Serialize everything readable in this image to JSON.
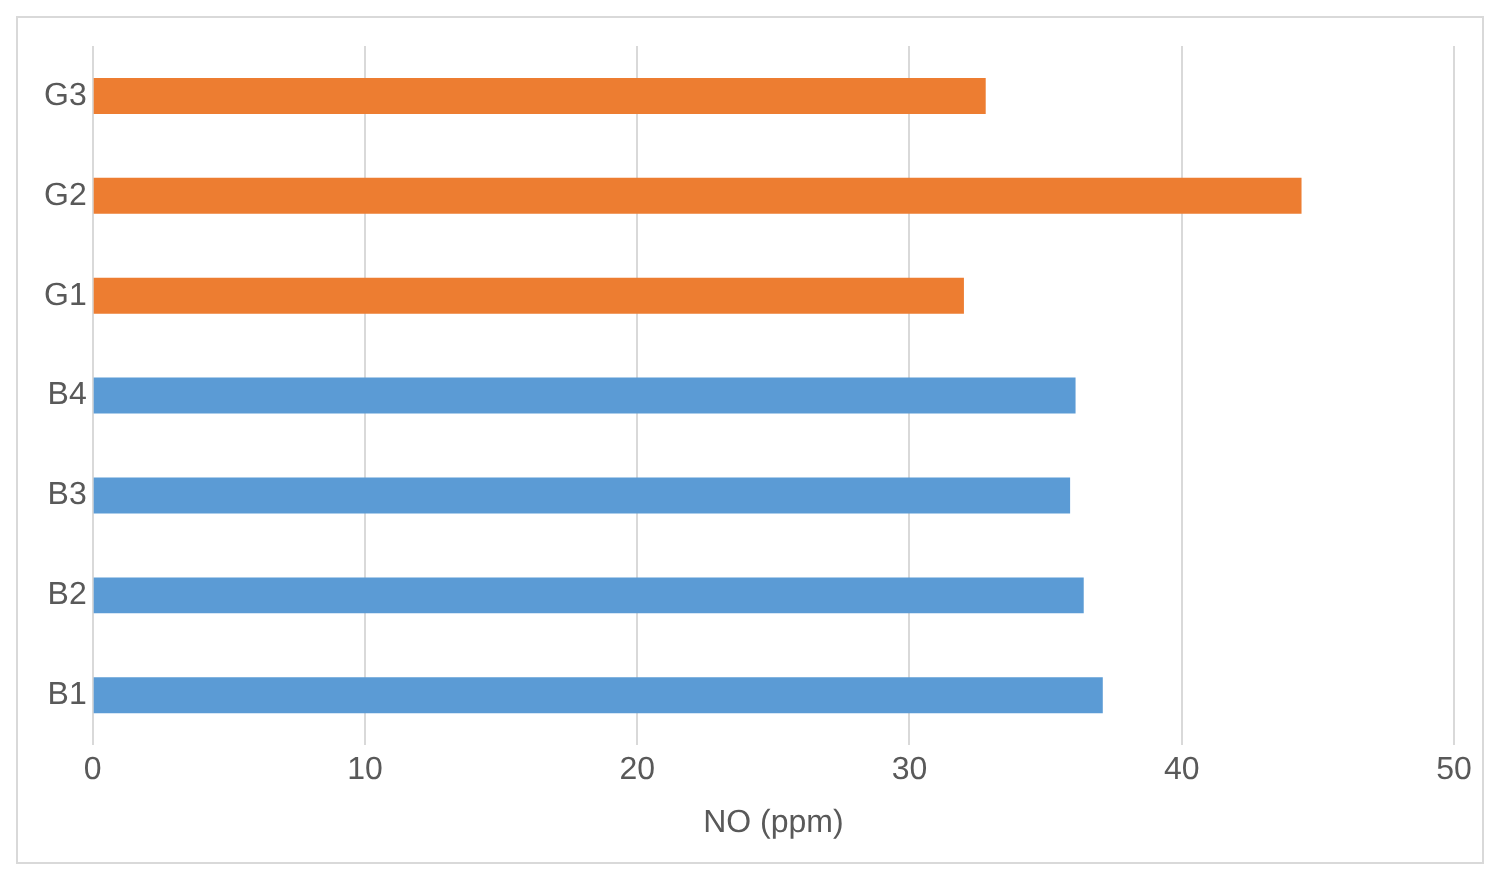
{
  "chart_data": {
    "type": "bar",
    "orientation": "horizontal",
    "xlabel": "NO (ppm)",
    "categories": [
      "G3",
      "G2",
      "G1",
      "B4",
      "B3",
      "B2",
      "B1"
    ],
    "values": [
      32.8,
      44.4,
      32.0,
      36.1,
      35.9,
      36.4,
      37.1
    ],
    "colors": [
      "#ed7d31",
      "#ed7d31",
      "#ed7d31",
      "#5b9bd5",
      "#5b9bd5",
      "#5b9bd5",
      "#5b9bd5"
    ],
    "xlim": [
      0,
      50
    ],
    "xticks": [
      0,
      10,
      20,
      30,
      40,
      50
    ],
    "grid": "x",
    "legend": false
  }
}
